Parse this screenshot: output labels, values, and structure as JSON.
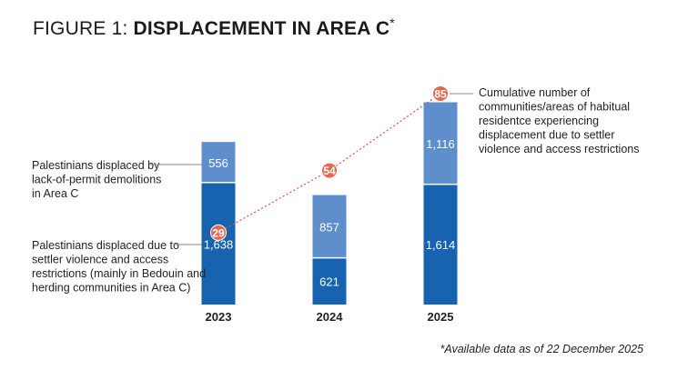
{
  "title": {
    "prefix": "FIGURE 1: ",
    "main": "DISPLACEMENT IN AREA C",
    "star": "*"
  },
  "footnote": "*Available data as of 22 December 2025",
  "colors": {
    "dark_blue": "#1763b0",
    "light_blue": "#5e8fcc",
    "marker": "#e0694f",
    "line": "#d9534f",
    "leader": "#888888"
  },
  "callouts": {
    "demolitions": [
      "Palestinians displaced by",
      "lack-of-permit demolitions",
      "in Area C"
    ],
    "settler": [
      "Palestinians displaced due to",
      "settler violence and access",
      "restrictions (mainly in Bedouin and",
      "herding communities in Area C)"
    ],
    "cumulative": [
      "Cumulative number of",
      "communities/areas of habitual",
      "residentce experiencing",
      "displacement due to settler",
      "violence and access restrictions"
    ]
  },
  "chart_data": {
    "type": "bar",
    "stacked": true,
    "title": "DISPLACEMENT IN AREA C",
    "categories": [
      "2023",
      "2024",
      "2025"
    ],
    "series": [
      {
        "name": "Palestinians displaced due to settler violence and access restrictions (mainly in Bedouin and herding communities in Area C)",
        "values": [
          1638,
          621,
          1614
        ],
        "labels": [
          "1,638",
          "621",
          "1,614"
        ]
      },
      {
        "name": "Palestinians displaced by lack-of-permit demolitions in Area C",
        "values": [
          556,
          857,
          1116
        ],
        "labels": [
          "556",
          "857",
          "1,116"
        ]
      }
    ],
    "line_series": {
      "name": "Cumulative number of communities/areas of habitual residentce experiencing displacement due to settler violence and access restrictions",
      "values": [
        29,
        54,
        85
      ],
      "labels": [
        "29",
        "54",
        "85"
      ],
      "style": "dotted"
    },
    "xlabel": "",
    "ylabel": "",
    "ylim": [
      0,
      3000
    ],
    "grid": false
  }
}
